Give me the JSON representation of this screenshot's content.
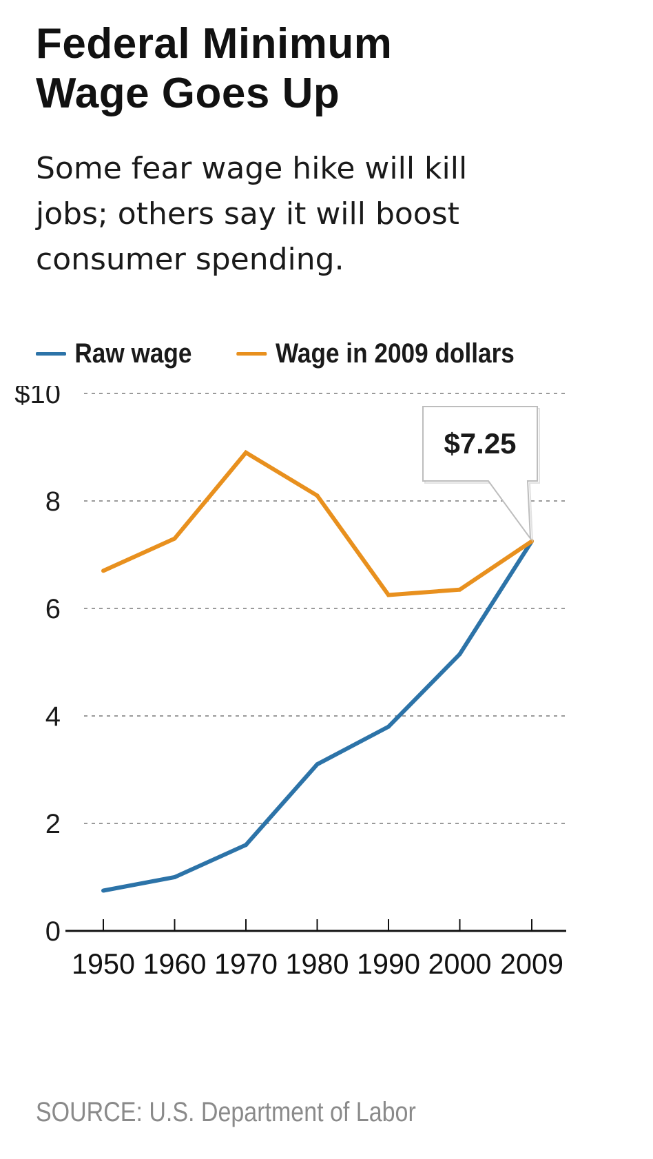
{
  "header": {
    "title_line1": "Federal Minimum",
    "title_line2": "Wage Goes Up",
    "subtitle_line1": "Some fear wage hike will kill",
    "subtitle_line2": "jobs; others say it will boost",
    "subtitle_line3": "consumer spending."
  },
  "legend": {
    "items": [
      {
        "label": "Raw wage",
        "color": "#2c73a8"
      },
      {
        "label": "Wage in 2009 dollars",
        "color": "#e8901e"
      }
    ]
  },
  "chart_data": {
    "type": "line",
    "title": "Federal Minimum Wage Goes Up",
    "subtitle": "Some fear wage hike will kill jobs; others say it will boost consumer spending.",
    "xlabel": "",
    "ylabel": "",
    "x": [
      1950,
      1960,
      1970,
      1980,
      1990,
      2000,
      2009
    ],
    "x_tick_labels": [
      "1950",
      "1960",
      "1970",
      "1980",
      "1990",
      "2000",
      "2009"
    ],
    "y_ticks": [
      0,
      2,
      4,
      6,
      8,
      10
    ],
    "y_tick_labels": [
      "0",
      "2",
      "4",
      "6",
      "8",
      "$10"
    ],
    "ylim": [
      0,
      10
    ],
    "grid": "horizontal dotted",
    "legend_position": "top",
    "series": [
      {
        "name": "Raw wage",
        "color": "#2c73a8",
        "values": [
          0.75,
          1.0,
          1.6,
          3.1,
          3.8,
          5.15,
          7.25
        ]
      },
      {
        "name": "Wage in 2009 dollars",
        "color": "#e8901e",
        "values": [
          6.7,
          7.3,
          8.9,
          8.1,
          6.25,
          6.35,
          7.25
        ]
      }
    ],
    "annotations": [
      {
        "x": 2009,
        "y": 7.25,
        "text": "$7.25"
      }
    ]
  },
  "footer": {
    "source": "SOURCE:  U.S. Department of Labor"
  }
}
